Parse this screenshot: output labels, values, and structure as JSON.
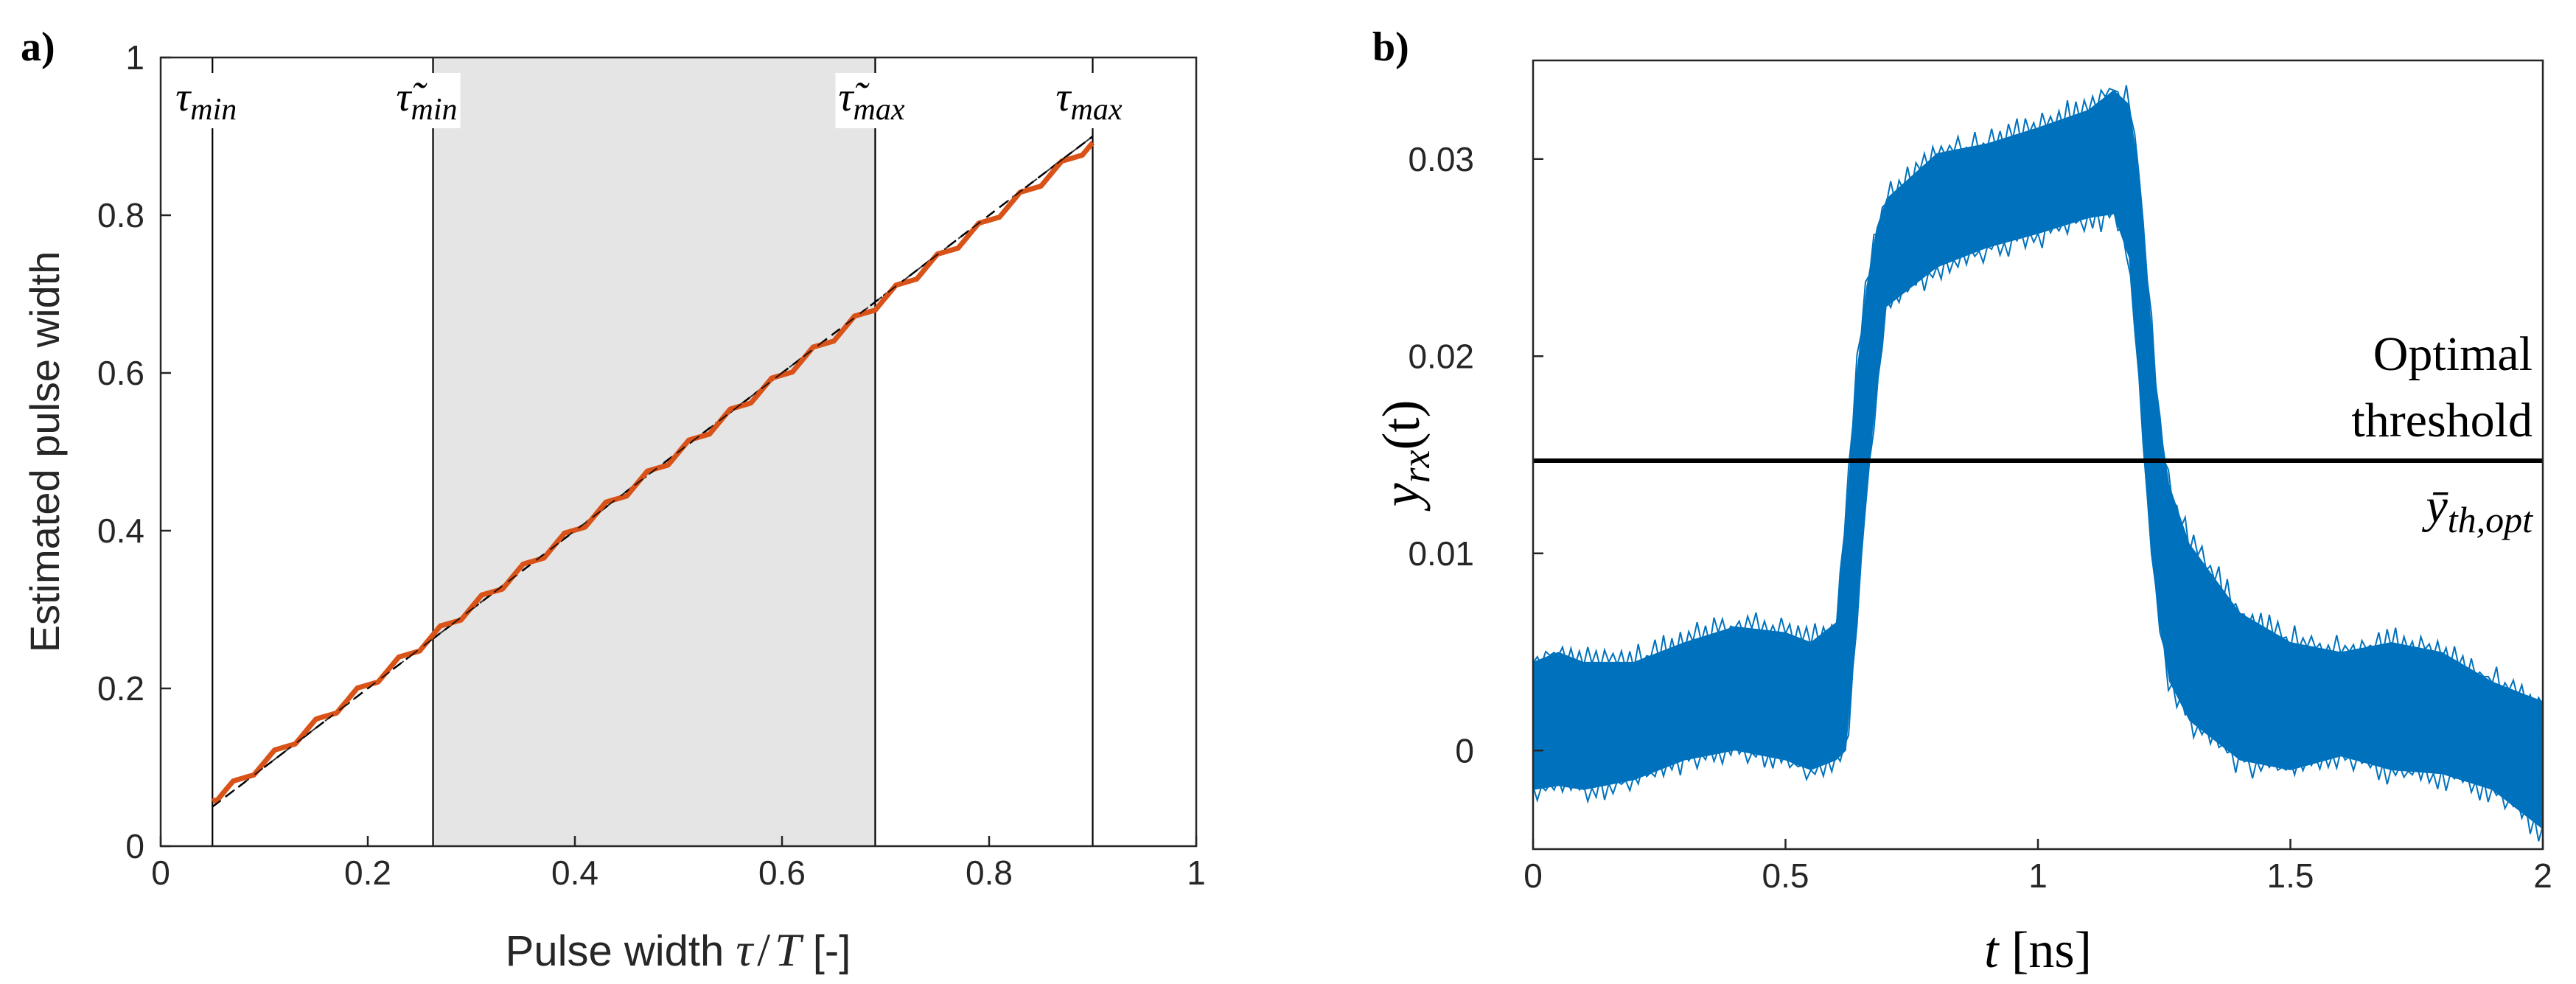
{
  "chart_data": [
    {
      "panel_label": "a)",
      "type": "line",
      "xlabel_text": "Pulse width ",
      "xlabel_tau": "τ",
      "xlabel_slash": "/",
      "xlabel_T": "T",
      "xlabel_unit": " [-]",
      "ylabel": "Estimated pulse width",
      "xlim": [
        0,
        1
      ],
      "ylim": [
        0,
        1
      ],
      "xticks": [
        "0",
        "0.2",
        "0.4",
        "0.6",
        "0.8",
        "1"
      ],
      "yticks": [
        "0",
        "0.2",
        "0.4",
        "0.6",
        "0.8",
        "1"
      ],
      "shaded_region": [
        0.263,
        0.69
      ],
      "vertical_lines": [
        {
          "x": 0.05,
          "label": "τ",
          "subscript": "min"
        },
        {
          "x": 0.263,
          "label": "τ̃",
          "subscript": "min"
        },
        {
          "x": 0.69,
          "label": "τ̃",
          "subscript": "max"
        },
        {
          "x": 0.9,
          "label": "τ",
          "subscript": "max"
        }
      ],
      "series": [
        {
          "name": "ideal",
          "style": "dashed",
          "color": "#000000",
          "x": [
            0.05,
            0.9
          ],
          "y": [
            0.05,
            0.9
          ]
        },
        {
          "name": "estimated",
          "color": "#D95319",
          "x_range": [
            0.05,
            0.9
          ],
          "ripple_amplitude": 0.006,
          "start": [
            0.05,
            0.057
          ],
          "end": [
            0.9,
            0.892
          ]
        }
      ]
    },
    {
      "panel_label": "b)",
      "type": "line",
      "xlabel_var": "t",
      "xlabel_unit": " [ns]",
      "ylabel_var": "y",
      "ylabel_sub": "rx",
      "ylabel_arg": "(t)",
      "xlim": [
        0,
        2
      ],
      "ylim": [
        -0.005,
        0.035
      ],
      "xticks": [
        "0",
        "0.5",
        "1",
        "1.5",
        "2"
      ],
      "yticks": [
        "0",
        "0.01",
        "0.02",
        "0.03"
      ],
      "series_color": "#0072BD",
      "envelope": {
        "x": [
          0,
          0.05,
          0.1,
          0.2,
          0.3,
          0.4,
          0.5,
          0.55,
          0.6,
          0.62,
          0.64,
          0.66,
          0.68,
          0.7,
          0.8,
          0.9,
          1.0,
          1.1,
          1.15,
          1.18,
          1.2,
          1.22,
          1.24,
          1.26,
          1.3,
          1.4,
          1.5,
          1.6,
          1.7,
          1.8,
          1.9,
          2.0
        ],
        "upper": [
          0.0045,
          0.005,
          0.0045,
          0.0045,
          0.0055,
          0.0063,
          0.006,
          0.0055,
          0.0065,
          0.012,
          0.019,
          0.0235,
          0.0265,
          0.028,
          0.0303,
          0.0308,
          0.0316,
          0.0325,
          0.0335,
          0.0328,
          0.0295,
          0.023,
          0.017,
          0.0135,
          0.0105,
          0.007,
          0.0055,
          0.005,
          0.0055,
          0.005,
          0.0035,
          0.0025
        ],
        "lower": [
          -0.002,
          -0.0018,
          -0.002,
          -0.0015,
          -0.0005,
          0.0,
          -0.0005,
          -0.001,
          -0.0005,
          0.0,
          0.006,
          0.013,
          0.018,
          0.0225,
          0.0245,
          0.0255,
          0.0262,
          0.027,
          0.0272,
          0.025,
          0.019,
          0.0115,
          0.0065,
          0.0035,
          0.0015,
          -0.0005,
          -0.001,
          -0.0003,
          -0.001,
          -0.0012,
          -0.002,
          -0.004
        ]
      },
      "threshold": {
        "y": 0.0147,
        "line1": "Optimal",
        "line2": "threshold",
        "symbol_var": "ȳ",
        "symbol_sub": "th,opt"
      }
    }
  ]
}
